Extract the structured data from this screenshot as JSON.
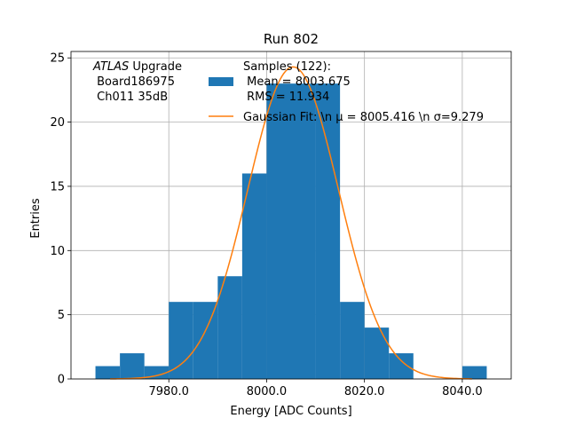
{
  "chart_data": {
    "type": "histogram",
    "title": "Run 802",
    "xlabel": "Energy [ADC Counts]",
    "ylabel": "Entries",
    "xlim": [
      7960,
      8050
    ],
    "ylim": [
      0,
      25.5
    ],
    "xticks": [
      7980,
      8000,
      8020,
      8040
    ],
    "xtick_labels": [
      "7980.0",
      "8000.0",
      "8020.0",
      "8040.0"
    ],
    "yticks": [
      0,
      5,
      10,
      15,
      20,
      25
    ],
    "ytick_labels": [
      "0",
      "5",
      "10",
      "15",
      "20",
      "25"
    ],
    "grid": true,
    "bins": [
      {
        "x0": 7965,
        "x1": 7970,
        "count": 1
      },
      {
        "x0": 7970,
        "x1": 7975,
        "count": 2
      },
      {
        "x0": 7975,
        "x1": 7980,
        "count": 1
      },
      {
        "x0": 7980,
        "x1": 7985,
        "count": 6
      },
      {
        "x0": 7985,
        "x1": 7990,
        "count": 6
      },
      {
        "x0": 7990,
        "x1": 7995,
        "count": 8
      },
      {
        "x0": 7995,
        "x1": 8000,
        "count": 16
      },
      {
        "x0": 8000,
        "x1": 8005,
        "count": 23
      },
      {
        "x0": 8005,
        "x1": 8010,
        "count": 23
      },
      {
        "x0": 8010,
        "x1": 8015,
        "count": 23
      },
      {
        "x0": 8015,
        "x1": 8020,
        "count": 6
      },
      {
        "x0": 8020,
        "x1": 8025,
        "count": 4
      },
      {
        "x0": 8025,
        "x1": 8030,
        "count": 2
      },
      {
        "x0": 8030,
        "x1": 8035,
        "count": 0
      },
      {
        "x0": 8035,
        "x1": 8040,
        "count": 0
      },
      {
        "x0": 8040,
        "x1": 8045,
        "count": 1
      }
    ],
    "gaussian_fit": {
      "mu": 8005.416,
      "sigma": 9.279,
      "amplitude": 24.3,
      "x_range": [
        7968,
        8042
      ]
    },
    "colors": {
      "histogram": "#1f77b4",
      "fit": "#ff7f0e",
      "grid": "#b0b0b0"
    },
    "annotation": {
      "line1_italic": "ATLAS",
      "line1_rest": " Upgrade",
      "line2": " Board186975",
      "line3": " Ch011 35dB"
    },
    "legend": {
      "position": "top-center",
      "samples_line1": "Samples (122):",
      "samples_line2": " Mean = 8003.675",
      "samples_line3": " RMS = 11.934",
      "fit_label": "Gaussian Fit: \\n μ = 8005.416 \\n σ=9.279"
    }
  }
}
